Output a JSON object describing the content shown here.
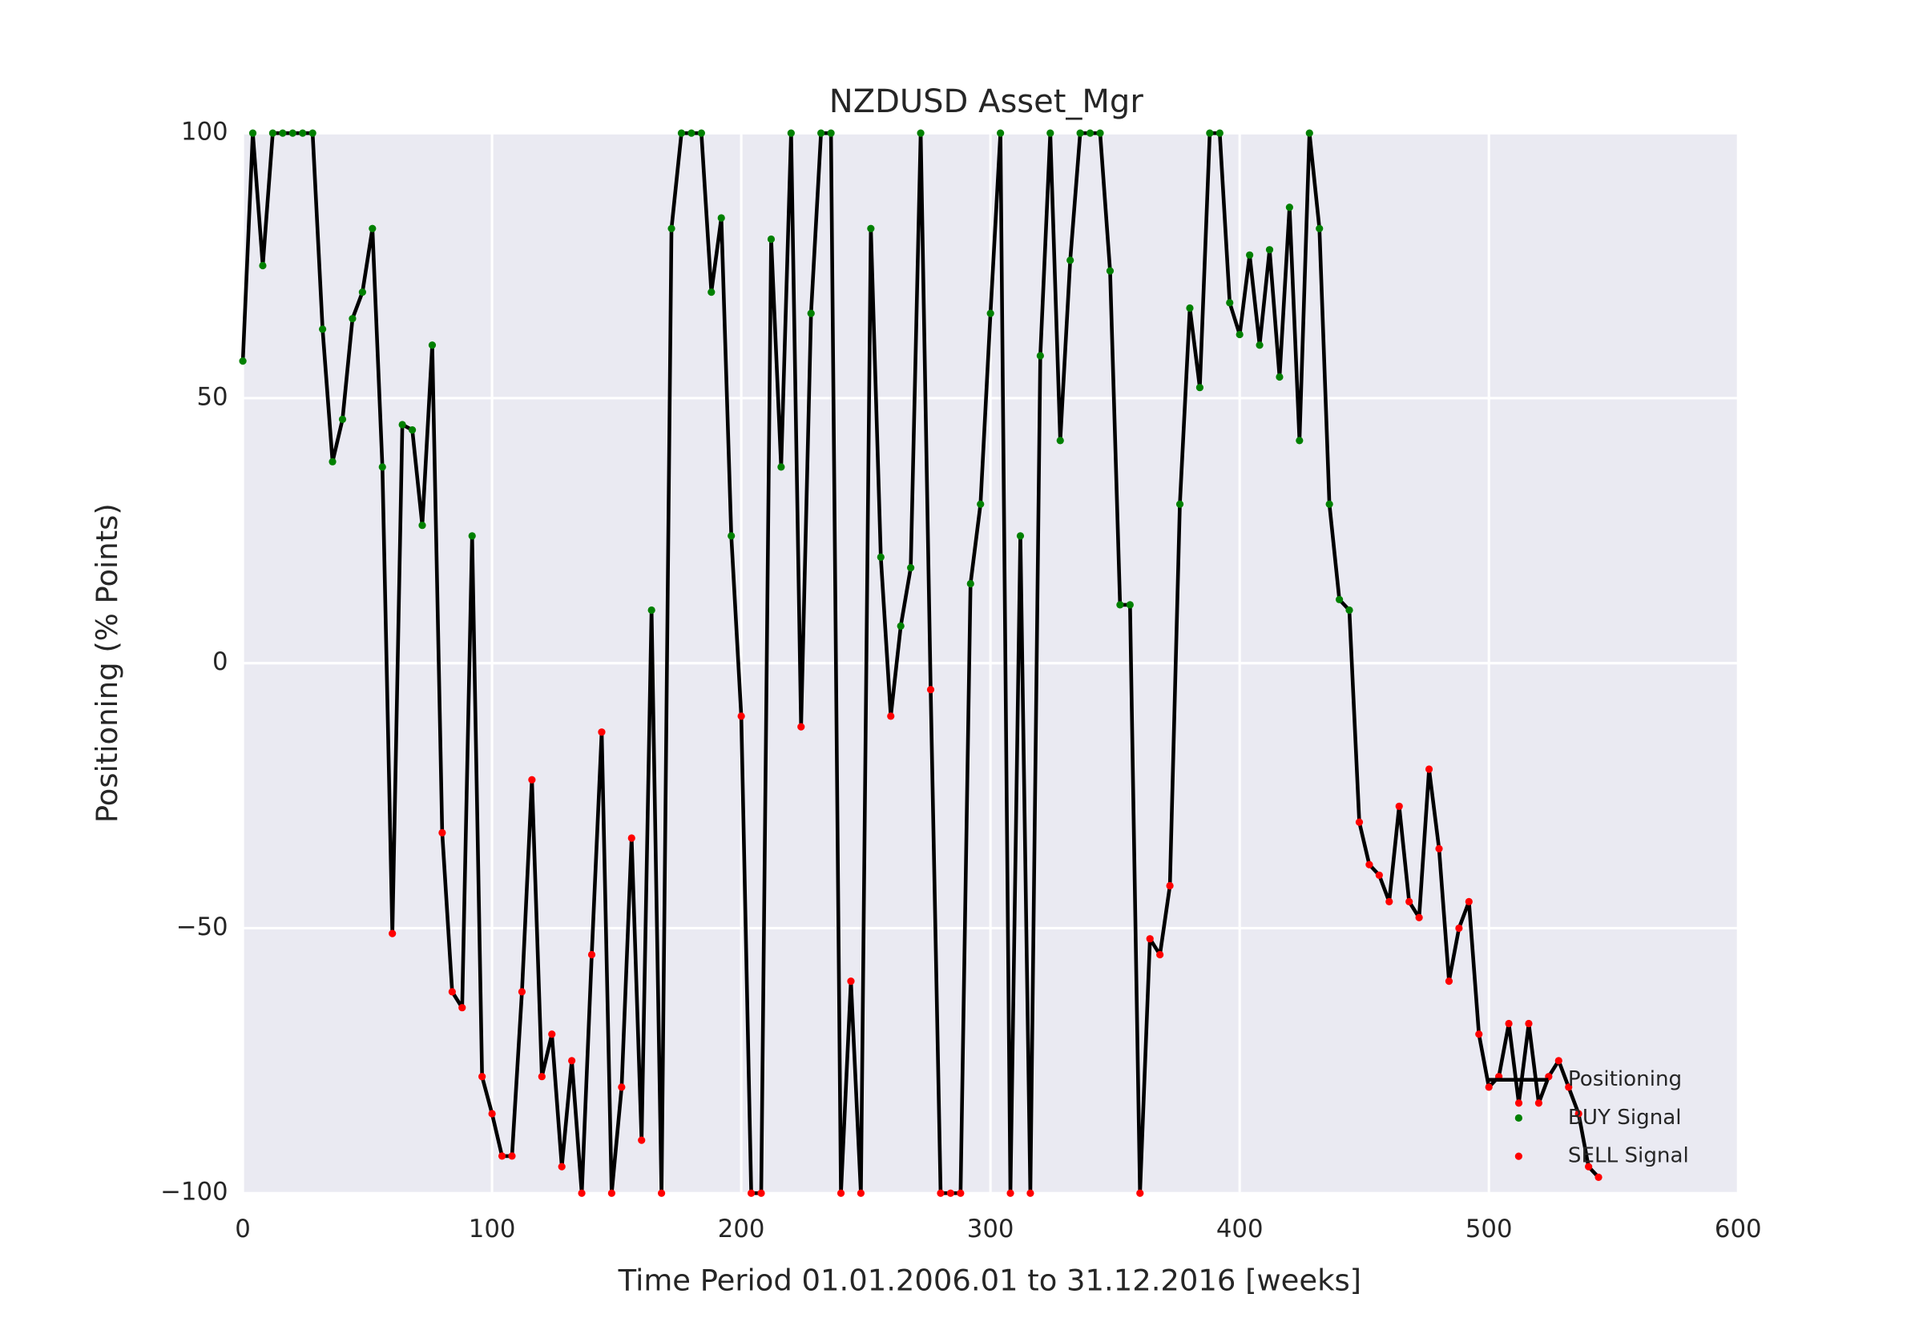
{
  "chart_data": {
    "type": "line",
    "title": "NZDUSD Asset_Mgr",
    "x_label": "Time Period 01.01.2006.01 to 31.12.2016 [weeks]",
    "y_label": "Positioning (% Points)",
    "xlim": [
      0,
      600
    ],
    "xticks": [
      0,
      100,
      200,
      300,
      400,
      500,
      600
    ],
    "ylim": [
      -100,
      100
    ],
    "yticks": [
      {
        "value": -100,
        "label": "−100"
      },
      {
        "value": -50,
        "label": "−50"
      },
      0,
      50,
      100
    ],
    "grid": true,
    "legend": "lower right",
    "x": [
      0,
      4,
      8,
      12,
      16,
      20,
      24,
      28,
      32,
      36,
      40,
      44,
      48,
      52,
      56,
      60,
      64,
      68,
      72,
      76,
      80,
      84,
      88,
      92,
      96,
      100,
      104,
      108,
      112,
      116,
      120,
      124,
      128,
      132,
      136,
      140,
      144,
      148,
      152,
      156,
      160,
      164,
      168,
      172,
      176,
      180,
      184,
      188,
      192,
      196,
      200,
      204,
      208,
      212,
      216,
      220,
      224,
      228,
      232,
      236,
      240,
      244,
      248,
      252,
      256,
      260,
      264,
      268,
      272,
      276,
      280,
      284,
      288,
      292,
      296,
      300,
      304,
      308,
      312,
      316,
      320,
      324,
      328,
      332,
      336,
      340,
      344,
      348,
      352,
      356,
      360,
      364,
      368,
      372,
      376,
      380,
      384,
      388,
      392,
      396,
      400,
      404,
      408,
      412,
      416,
      420,
      424,
      428,
      432,
      436,
      440,
      444,
      448,
      452,
      456,
      460,
      464,
      468,
      472,
      476,
      480,
      484,
      488,
      492,
      496,
      500,
      504,
      508,
      512,
      516,
      520,
      524,
      528,
      532,
      536,
      540,
      544
    ],
    "series": [
      {
        "name": "Positioning",
        "color": "#000000",
        "values": [
          57,
          100,
          75,
          100,
          100,
          100,
          100,
          100,
          63,
          38,
          46,
          65,
          70,
          82,
          37,
          -51,
          45,
          44,
          26,
          60,
          -32,
          -62,
          -65,
          24,
          -78,
          -85,
          -93,
          -93,
          -62,
          -22,
          -78,
          -70,
          -95,
          -75,
          -100,
          -55,
          -13,
          -100,
          -80,
          -33,
          -90,
          10,
          -100,
          82,
          100,
          100,
          100,
          70,
          84,
          24,
          -10,
          -100,
          -100,
          80,
          37,
          100,
          -12,
          66,
          100,
          100,
          -100,
          -60,
          -100,
          82,
          20,
          -10,
          7,
          18,
          100,
          -5,
          -100,
          -100,
          -100,
          15,
          30,
          66,
          100,
          -100,
          24,
          -100,
          58,
          100,
          42,
          76,
          100,
          100,
          100,
          74,
          11,
          11,
          -100,
          -52,
          -55,
          -42,
          30,
          67,
          52,
          100,
          100,
          68,
          62,
          77,
          60,
          78,
          54,
          86,
          42,
          100,
          82,
          30,
          12,
          10,
          -30,
          -38,
          -40,
          -45,
          -27,
          -45,
          -48,
          -20,
          -35,
          -60,
          -50,
          -45,
          -70,
          -80,
          -78,
          -68,
          -83,
          -68,
          -83,
          -78,
          -75,
          -80,
          -85,
          -95,
          -97
        ]
      }
    ],
    "signals": [
      {
        "name": "BUY Signal",
        "color": "#008000"
      },
      {
        "name": "SELL Signal",
        "color": "#ff0000"
      }
    ]
  }
}
